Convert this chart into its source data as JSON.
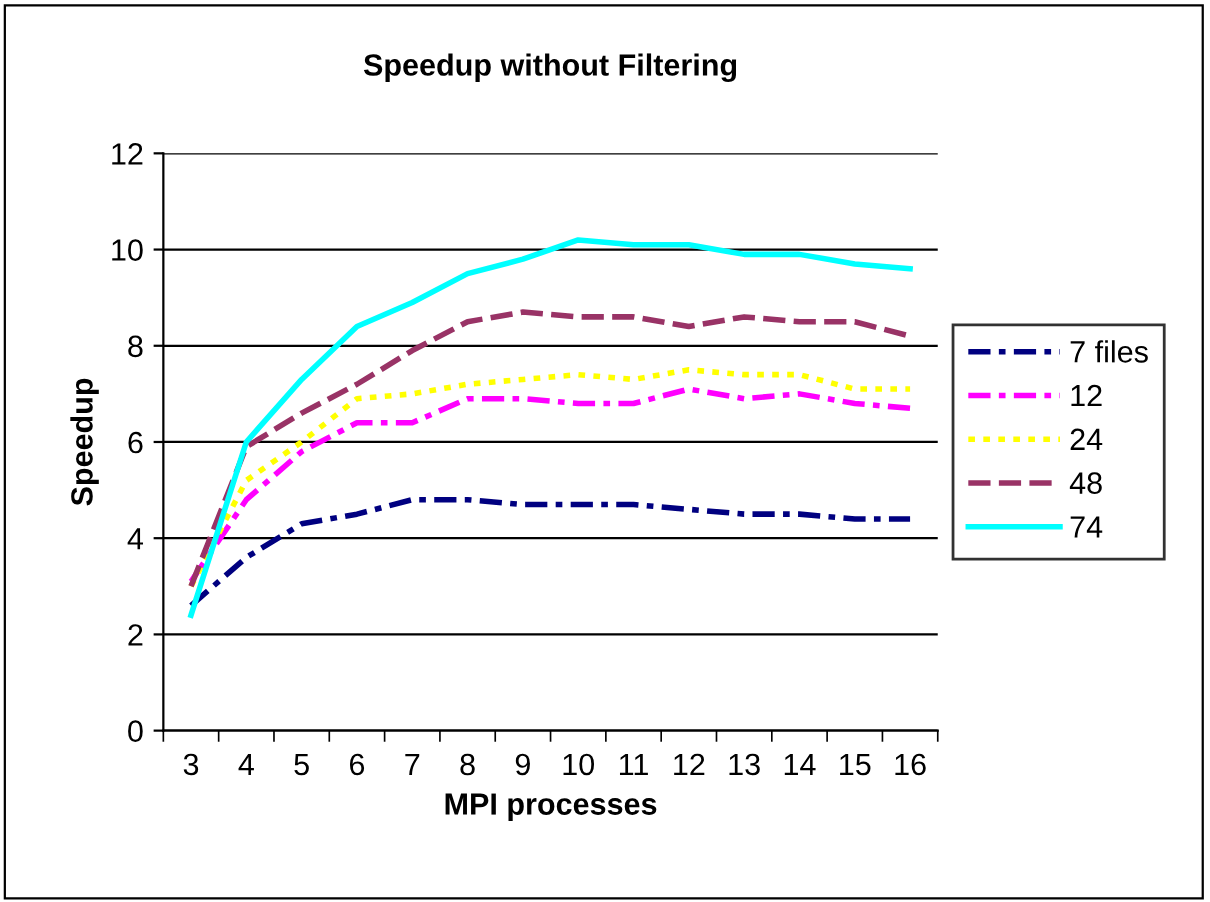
{
  "chart_data": {
    "type": "line",
    "title": "Speedup without Filtering",
    "xlabel": "MPI processes",
    "ylabel": "Speedup",
    "categories": [
      "3",
      "4",
      "5",
      "6",
      "7",
      "8",
      "9",
      "10",
      "11",
      "12",
      "13",
      "14",
      "15",
      "16"
    ],
    "series": [
      {
        "name": "7 files",
        "color": "#000080",
        "line_style": "dashdot",
        "values": [
          2.6,
          3.6,
          4.3,
          4.5,
          4.8,
          4.8,
          4.7,
          4.7,
          4.7,
          4.6,
          4.5,
          4.5,
          4.4,
          4.4
        ]
      },
      {
        "name": "12",
        "color": "#ff00ff",
        "line_style": "dashdot",
        "values": [
          3.1,
          4.8,
          5.8,
          6.4,
          6.4,
          6.9,
          6.9,
          6.8,
          6.8,
          7.1,
          6.9,
          7.0,
          6.8,
          6.7
        ]
      },
      {
        "name": "24",
        "color": "#ffff00",
        "line_style": "dotted",
        "values": [
          3.0,
          5.2,
          6.0,
          6.9,
          7.0,
          7.2,
          7.3,
          7.4,
          7.3,
          7.5,
          7.4,
          7.4,
          7.1,
          7.1
        ]
      },
      {
        "name": "48",
        "color": "#993366",
        "line_style": "dashed",
        "values": [
          3.0,
          5.9,
          6.6,
          7.2,
          7.9,
          8.5,
          8.7,
          8.6,
          8.6,
          8.4,
          8.6,
          8.5,
          8.5,
          8.2
        ]
      },
      {
        "name": "74",
        "color": "#00ffff",
        "line_style": "solid",
        "values": [
          2.4,
          6.0,
          7.3,
          8.4,
          8.9,
          9.5,
          9.8,
          10.2,
          10.1,
          10.1,
          9.9,
          9.9,
          9.7,
          9.6
        ]
      }
    ],
    "ylim": [
      0,
      12
    ],
    "yticks": [
      0,
      2,
      4,
      6,
      8,
      10,
      12
    ],
    "grid": "y",
    "legend": "right",
    "marker": "none"
  }
}
